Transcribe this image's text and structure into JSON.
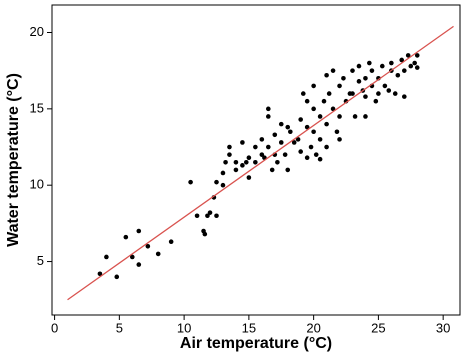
{
  "chart_data": {
    "type": "scatter",
    "xlabel": "Air temperature (°C)",
    "ylabel": "Water temperature (°C)",
    "color": "#000000",
    "x": [
      3.5,
      4,
      4.8,
      5.5,
      6,
      6.5,
      6.5,
      7.2,
      8,
      9,
      10.5,
      11,
      11.5,
      11.6,
      11.8,
      12,
      12.5,
      12.3,
      12.5,
      13,
      13.2,
      13.5,
      13.5,
      14,
      14,
      14.5,
      14.8,
      15,
      15,
      13,
      15.5,
      16,
      16,
      16.2,
      16.5,
      16.5,
      16.5,
      17,
      17,
      17.2,
      17.5,
      17.8,
      18,
      18.2,
      18.5,
      18.8,
      19,
      19,
      19.2,
      19.5,
      19.5,
      19.8,
      20,
      20,
      20,
      20.2,
      20.5,
      20.5,
      20.8,
      21,
      21,
      21.2,
      21.5,
      21.5,
      21.8,
      22,
      22,
      22.3,
      22.5,
      22.8,
      23,
      23,
      23.2,
      23.5,
      23.5,
      23.8,
      24,
      24,
      24.3,
      24.5,
      24.5,
      24.8,
      25,
      25,
      25.3,
      25.5,
      25.8,
      26,
      26,
      26.3,
      26.5,
      26.8,
      27,
      27,
      27.3,
      27.5,
      27.8,
      28,
      28,
      15.5,
      14.5,
      18,
      19.5,
      20.5,
      22,
      21,
      17.5,
      16.8,
      24
    ],
    "y": [
      4.2,
      5.3,
      4,
      6.6,
      5.3,
      7,
      4.8,
      6,
      5.5,
      6.3,
      10.2,
      8,
      7,
      6.8,
      8,
      8.2,
      8,
      9.2,
      10.2,
      10.8,
      11.5,
      12,
      12.5,
      11.5,
      11,
      11.3,
      11.5,
      11.8,
      10.5,
      10,
      11.5,
      12,
      13,
      11.8,
      15,
      14.5,
      12.5,
      12,
      13.3,
      11.5,
      12.8,
      12,
      11,
      13.5,
      12.8,
      13,
      14.3,
      12.2,
      16,
      15.5,
      13.8,
      12.5,
      16.5,
      15,
      13.5,
      12,
      14.5,
      13,
      15.5,
      14,
      12.5,
      16,
      17.5,
      15,
      13.5,
      14.5,
      16.5,
      17,
      15.5,
      16,
      17.5,
      16,
      14.5,
      16.8,
      17.8,
      16.2,
      17,
      15.8,
      18,
      16.5,
      17.5,
      15.5,
      17,
      16,
      17.8,
      16.5,
      16.2,
      17.5,
      18,
      16,
      17.2,
      18.2,
      17.5,
      15.8,
      18.5,
      17.8,
      18,
      18.5,
      17.7,
      12.5,
      12.8,
      13.8,
      11.8,
      11.7,
      13,
      17.2,
      14,
      11,
      14.5
    ],
    "fit_line": {
      "x": [
        1,
        30.8
      ],
      "y": [
        2.5,
        20.4
      ],
      "color": "#d9534f"
    },
    "xlim": [
      -0.2,
      31.3
    ],
    "ylim": [
      1.5,
      21.8
    ],
    "xticks": [
      0,
      5,
      10,
      15,
      20,
      25,
      30
    ],
    "yticks": [
      5,
      10,
      15,
      20
    ]
  }
}
